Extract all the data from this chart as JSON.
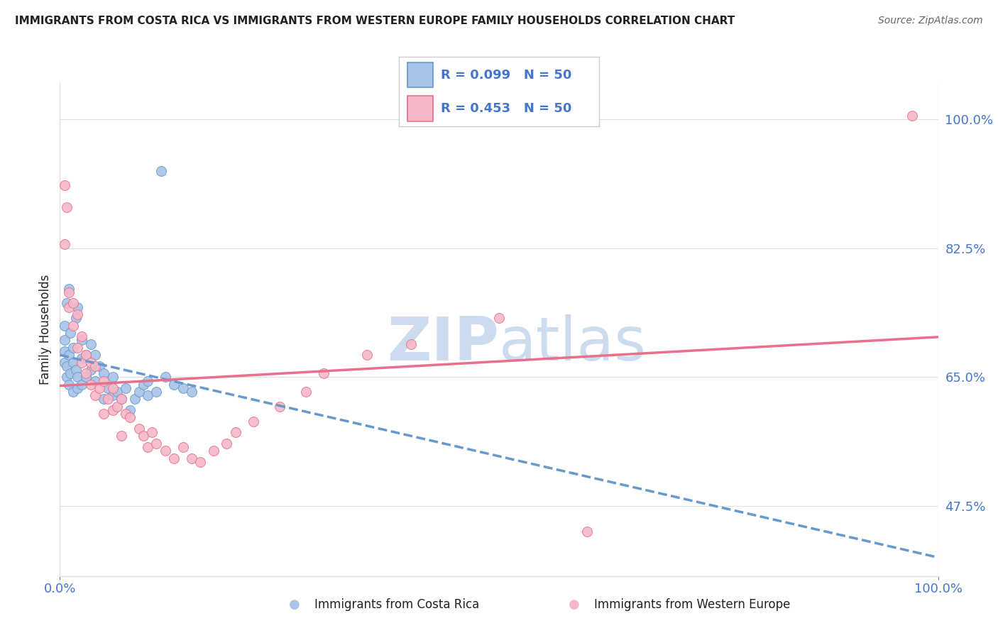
{
  "title": "IMMIGRANTS FROM COSTA RICA VS IMMIGRANTS FROM WESTERN EUROPE FAMILY HOUSEHOLDS CORRELATION CHART",
  "source": "Source: ZipAtlas.com",
  "ylabel": "Family Households",
  "r_blue": 0.099,
  "r_pink": 0.453,
  "n": 50,
  "xlim": [
    0,
    100
  ],
  "ylim": [
    38,
    105
  ],
  "yticks": [
    47.5,
    65.0,
    82.5,
    100.0
  ],
  "blue_color": "#a8c4e8",
  "pink_color": "#f4b8c8",
  "blue_line_color": "#6699cc",
  "pink_line_color": "#e8708a",
  "legend_text_color": "#4477cc",
  "title_color": "#222222",
  "grid_color": "#e0e0e0",
  "watermark_color": "#ccdcee",
  "blue_scatter_x": [
    0.5,
    0.5,
    0.5,
    0.5,
    0.8,
    0.8,
    0.8,
    1.0,
    1.0,
    1.0,
    1.2,
    1.2,
    1.5,
    1.5,
    1.5,
    1.8,
    1.8,
    2.0,
    2.0,
    2.0,
    2.5,
    2.5,
    2.5,
    3.0,
    3.0,
    3.5,
    3.5,
    4.0,
    4.0,
    4.5,
    5.0,
    5.0,
    5.5,
    6.0,
    6.0,
    6.5,
    7.0,
    7.5,
    8.0,
    8.5,
    9.0,
    9.5,
    10.0,
    10.0,
    11.0,
    11.5,
    12.0,
    13.0,
    14.0,
    15.0
  ],
  "blue_scatter_y": [
    67.0,
    68.5,
    70.0,
    72.0,
    65.0,
    66.5,
    75.0,
    64.0,
    68.0,
    77.0,
    65.5,
    71.0,
    63.0,
    67.0,
    69.0,
    66.0,
    73.0,
    63.5,
    65.0,
    74.5,
    64.0,
    67.5,
    70.0,
    65.0,
    68.0,
    66.0,
    69.5,
    64.5,
    68.0,
    66.5,
    62.0,
    65.5,
    63.5,
    62.5,
    65.0,
    63.0,
    62.0,
    63.5,
    60.5,
    62.0,
    63.0,
    64.0,
    62.5,
    64.5,
    63.0,
    93.0,
    65.0,
    64.0,
    63.5,
    63.0
  ],
  "pink_scatter_x": [
    0.5,
    0.5,
    0.8,
    1.0,
    1.0,
    1.5,
    1.5,
    2.0,
    2.0,
    2.5,
    2.5,
    3.0,
    3.0,
    3.5,
    3.5,
    4.0,
    4.0,
    4.5,
    5.0,
    5.0,
    5.5,
    6.0,
    6.0,
    6.5,
    7.0,
    7.0,
    7.5,
    8.0,
    9.0,
    9.5,
    10.0,
    10.5,
    11.0,
    12.0,
    13.0,
    14.0,
    15.0,
    16.0,
    17.5,
    19.0,
    20.0,
    22.0,
    25.0,
    28.0,
    30.0,
    35.0,
    40.0,
    50.0,
    60.0,
    97.0
  ],
  "pink_scatter_y": [
    83.0,
    91.0,
    88.0,
    74.5,
    76.5,
    72.0,
    75.0,
    69.0,
    73.5,
    67.0,
    70.5,
    65.5,
    68.0,
    64.0,
    67.0,
    62.5,
    66.5,
    63.5,
    60.0,
    64.5,
    62.0,
    60.5,
    63.5,
    61.0,
    57.0,
    62.0,
    60.0,
    59.5,
    58.0,
    57.0,
    55.5,
    57.5,
    56.0,
    55.0,
    54.0,
    55.5,
    54.0,
    53.5,
    55.0,
    56.0,
    57.5,
    59.0,
    61.0,
    63.0,
    65.5,
    68.0,
    69.5,
    73.0,
    44.0,
    100.5
  ],
  "background_color": "#ffffff",
  "legend_border_color": "#cccccc",
  "bottom_label_blue": "Immigrants from Costa Rica",
  "bottom_label_pink": "Immigrants from Western Europe"
}
